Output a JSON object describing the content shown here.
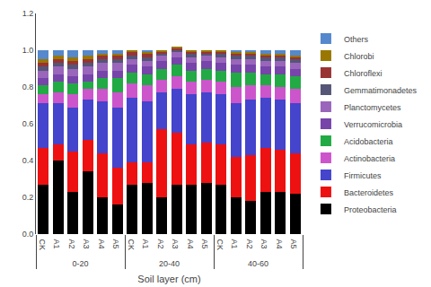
{
  "chart_data": {
    "type": "bar",
    "stacked": true,
    "xlabel": "Soil layer (cm)",
    "categories": [
      [
        "0-20",
        "CK"
      ],
      [
        "0-20",
        "A1"
      ],
      [
        "0-20",
        "A2"
      ],
      [
        "0-20",
        "A3"
      ],
      [
        "0-20",
        "A4"
      ],
      [
        "0-20",
        "A5"
      ],
      [
        "20-40",
        "CK"
      ],
      [
        "20-40",
        "A1"
      ],
      [
        "20-40",
        "A2"
      ],
      [
        "20-40",
        "A3"
      ],
      [
        "20-40",
        "A4"
      ],
      [
        "20-40",
        "A5"
      ],
      [
        "40-60",
        "CK"
      ],
      [
        "40-60",
        "A1"
      ],
      [
        "40-60",
        "A2"
      ],
      [
        "40-60",
        "A3"
      ],
      [
        "40-60",
        "A4"
      ],
      [
        "40-60",
        "A5"
      ]
    ],
    "series": [
      {
        "name": "Proteobacteria",
        "color": "#000000",
        "values": [
          0.27,
          0.4,
          0.23,
          0.34,
          0.2,
          0.16,
          0.27,
          0.28,
          0.2,
          0.27,
          0.27,
          0.28,
          0.27,
          0.2,
          0.18,
          0.23,
          0.23,
          0.22
        ]
      },
      {
        "name": "Bacteroidetes",
        "color": "#EE1111",
        "values": [
          0.2,
          0.09,
          0.22,
          0.17,
          0.24,
          0.2,
          0.12,
          0.11,
          0.37,
          0.28,
          0.22,
          0.22,
          0.22,
          0.22,
          0.25,
          0.24,
          0.23,
          0.22
        ]
      },
      {
        "name": "Firmicutes",
        "color": "#4444CC",
        "values": [
          0.24,
          0.22,
          0.24,
          0.22,
          0.28,
          0.33,
          0.35,
          0.33,
          0.2,
          0.24,
          0.27,
          0.27,
          0.27,
          0.29,
          0.3,
          0.27,
          0.27,
          0.27
        ]
      },
      {
        "name": "Actinobacteria",
        "color": "#CC55CC",
        "values": [
          0.05,
          0.06,
          0.07,
          0.06,
          0.07,
          0.08,
          0.08,
          0.09,
          0.07,
          0.07,
          0.07,
          0.07,
          0.07,
          0.09,
          0.08,
          0.07,
          0.07,
          0.08
        ]
      },
      {
        "name": "Acidobacteria",
        "color": "#22AA44",
        "values": [
          0.05,
          0.06,
          0.06,
          0.04,
          0.06,
          0.08,
          0.06,
          0.06,
          0.06,
          0.06,
          0.06,
          0.06,
          0.06,
          0.08,
          0.07,
          0.06,
          0.07,
          0.07
        ]
      },
      {
        "name": "Verrucomicrobia",
        "color": "#7744AA",
        "values": [
          0.04,
          0.04,
          0.04,
          0.04,
          0.04,
          0.04,
          0.04,
          0.04,
          0.04,
          0.04,
          0.04,
          0.04,
          0.04,
          0.04,
          0.04,
          0.04,
          0.04,
          0.04
        ]
      },
      {
        "name": "Planctomycetes",
        "color": "#9966BB",
        "values": [
          0.04,
          0.04,
          0.04,
          0.04,
          0.04,
          0.04,
          0.03,
          0.03,
          0.03,
          0.03,
          0.03,
          0.03,
          0.03,
          0.03,
          0.03,
          0.03,
          0.03,
          0.03
        ]
      },
      {
        "name": "Gemmatimonadetes",
        "color": "#555577",
        "values": [
          0.02,
          0.02,
          0.02,
          0.02,
          0.02,
          0.02,
          0.02,
          0.02,
          0.01,
          0.01,
          0.02,
          0.01,
          0.02,
          0.02,
          0.02,
          0.02,
          0.02,
          0.02
        ]
      },
      {
        "name": "Chloroflexi",
        "color": "#993333",
        "values": [
          0.02,
          0.02,
          0.02,
          0.02,
          0.02,
          0.02,
          0.02,
          0.02,
          0.01,
          0.01,
          0.01,
          0.01,
          0.01,
          0.01,
          0.01,
          0.01,
          0.01,
          0.01
        ]
      },
      {
        "name": "Chlorobi",
        "color": "#997700",
        "values": [
          0.02,
          0.02,
          0.02,
          0.02,
          0.01,
          0.01,
          0.01,
          0.01,
          0.01,
          0.01,
          0.01,
          0.01,
          0.01,
          0.01,
          0.01,
          0.01,
          0.01,
          0.01
        ]
      },
      {
        "name": "Others",
        "color": "#5588CC",
        "values": [
          0.05,
          0.03,
          0.04,
          0.03,
          0.02,
          0.02,
          0,
          0.01,
          0,
          0,
          0,
          0,
          0,
          0.01,
          0.01,
          0.02,
          0.02,
          0.03
        ]
      }
    ],
    "ylim": [
      0,
      1.2
    ],
    "yticks": [
      {
        "value": 0,
        "label": "0.0"
      },
      0.2,
      0.4,
      0.6,
      0.8,
      {
        "value": 1,
        "label": "1.0"
      },
      1.2
    ],
    "grid": false,
    "legend": "right"
  }
}
